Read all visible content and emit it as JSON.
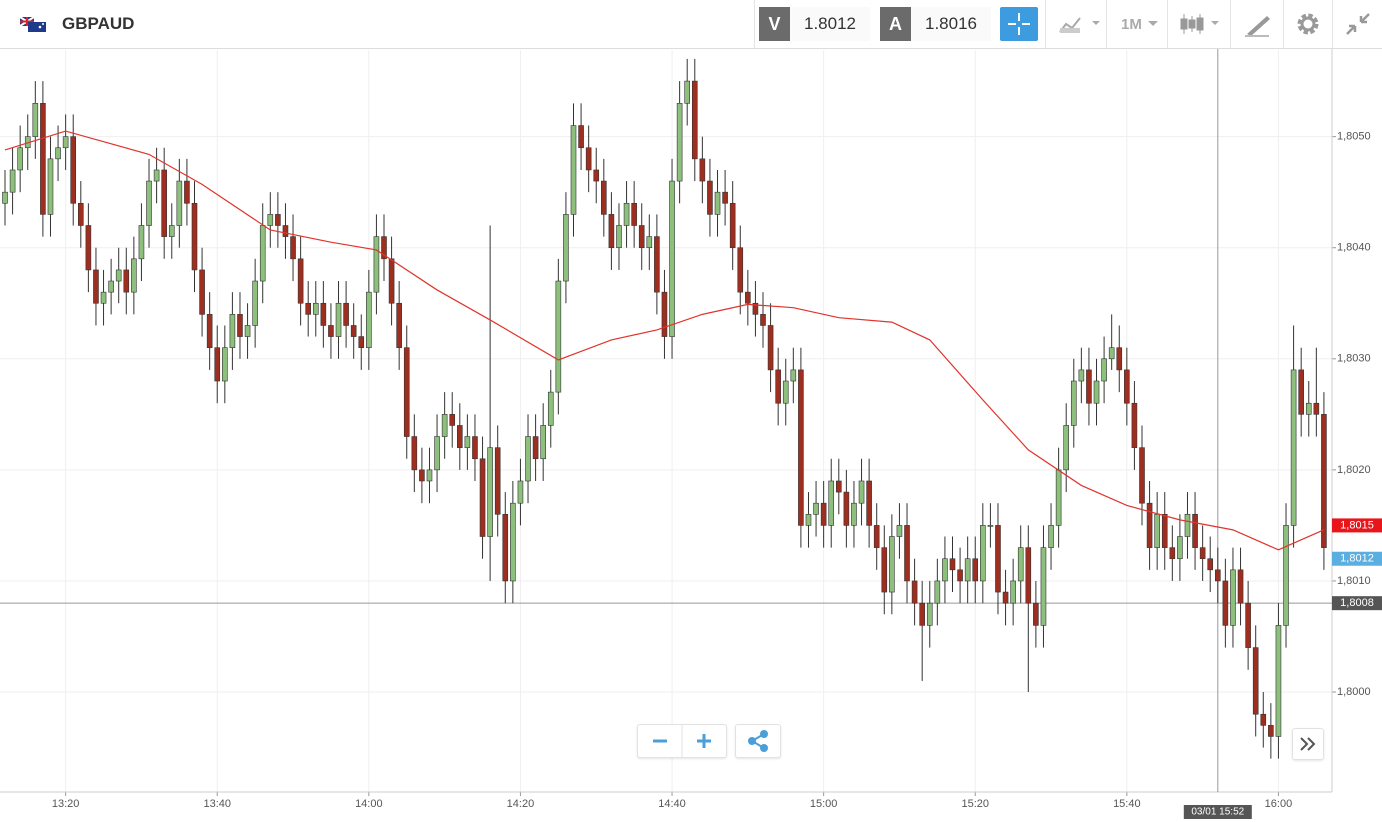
{
  "toolbar": {
    "symbol": "GBPAUD",
    "bid_label": "V",
    "bid": 1.8012,
    "ask_label": "A",
    "ask": 1.8016,
    "timeframe": "1M"
  },
  "chart_data": {
    "type": "candlestick",
    "up_color": "#8dbf7d",
    "down_color": "#9e2f20",
    "open": [
      1.8044,
      1.8045,
      1.8047,
      1.8049,
      1.805,
      1.8053,
      1.8043,
      1.8048,
      1.8049,
      1.805,
      1.8044,
      1.8042,
      1.8038,
      1.8035,
      1.8036,
      1.8037,
      1.8038,
      1.8036,
      1.8039,
      1.8042,
      1.8046,
      1.8047,
      1.8041,
      1.8042,
      1.8046,
      1.8044,
      1.8038,
      1.8034,
      1.8031,
      1.8028,
      1.8031,
      1.8034,
      1.8032,
      1.8033,
      1.8037,
      1.8042,
      1.8043,
      1.8042,
      1.8041,
      1.8039,
      1.8035,
      1.8034,
      1.8035,
      1.8033,
      1.8032,
      1.8035,
      1.8033,
      1.8032,
      1.8031,
      1.8036,
      1.8041,
      1.8039,
      1.8035,
      1.8031,
      1.8023,
      1.802,
      1.8019,
      1.802,
      1.8023,
      1.8025,
      1.8024,
      1.8022,
      1.8023,
      1.8021,
      1.8014,
      1.8022,
      1.8016,
      1.801,
      1.8017,
      1.8019,
      1.8023,
      1.8021,
      1.8024,
      1.8027,
      1.8037,
      1.8043,
      1.8051,
      1.8049,
      1.8047,
      1.8046,
      1.8043,
      1.804,
      1.8042,
      1.8044,
      1.8042,
      1.804,
      1.8041,
      1.8036,
      1.8032,
      1.8046,
      1.8053,
      1.8055,
      1.8048,
      1.8046,
      1.8043,
      1.8045,
      1.8044,
      1.804,
      1.8036,
      1.8035,
      1.8034,
      1.8033,
      1.8029,
      1.8026,
      1.8028,
      1.8029,
      1.8015,
      1.8016,
      1.8017,
      1.8015,
      1.8019,
      1.8018,
      1.8015,
      1.8017,
      1.8019,
      1.8015,
      1.8013,
      1.8009,
      1.8014,
      1.8015,
      1.801,
      1.8008,
      1.8006,
      1.8008,
      1.801,
      1.8012,
      1.8011,
      1.801,
      1.8012,
      1.801,
      1.8015,
      1.8015,
      1.8009,
      1.8008,
      1.801,
      1.8013,
      1.8008,
      1.8006,
      1.8013,
      1.8015,
      1.802,
      1.8024,
      1.8028,
      1.8029,
      1.8026,
      1.8028,
      1.803,
      1.8031,
      1.8029,
      1.8026,
      1.8022,
      1.8017,
      1.8013,
      1.8016,
      1.8013,
      1.8012,
      1.8014,
      1.8016,
      1.8013,
      1.8012,
      1.8011,
      1.801,
      1.8006,
      1.8011,
      1.8008,
      1.8004,
      1.7998,
      1.7997,
      1.7996,
      1.8006,
      1.8015,
      1.8029,
      1.8025,
      1.8026,
      1.8025
    ],
    "high": [
      1.8047,
      1.8049,
      1.8051,
      1.8052,
      1.8055,
      1.8055,
      1.805,
      1.8051,
      1.8052,
      1.8052,
      1.8046,
      1.8044,
      1.804,
      1.8038,
      1.8039,
      1.804,
      1.804,
      1.8041,
      1.8044,
      1.8048,
      1.8049,
      1.8049,
      1.8044,
      1.8048,
      1.8048,
      1.8046,
      1.804,
      1.8036,
      1.8033,
      1.8033,
      1.8036,
      1.8036,
      1.8035,
      1.8039,
      1.8044,
      1.8045,
      1.8045,
      1.8044,
      1.8043,
      1.8041,
      1.8037,
      1.8037,
      1.8037,
      1.8035,
      1.8037,
      1.8037,
      1.8035,
      1.8034,
      1.8038,
      1.8043,
      1.8043,
      1.8041,
      1.8037,
      1.8033,
      1.8025,
      1.8022,
      1.8022,
      1.8025,
      1.8027,
      1.8027,
      1.8026,
      1.8025,
      1.8025,
      1.8023,
      1.8042,
      1.8024,
      1.8018,
      1.8019,
      1.8021,
      1.8025,
      1.8025,
      1.8026,
      1.8029,
      1.8039,
      1.8045,
      1.8053,
      1.8053,
      1.8051,
      1.8049,
      1.8048,
      1.8045,
      1.8044,
      1.8046,
      1.8046,
      1.8044,
      1.8043,
      1.8043,
      1.8038,
      1.8048,
      1.8055,
      1.8057,
      1.8057,
      1.805,
      1.8048,
      1.8047,
      1.8047,
      1.8046,
      1.8042,
      1.8038,
      1.8037,
      1.8036,
      1.8035,
      1.8031,
      1.803,
      1.8031,
      1.8031,
      1.8018,
      1.8019,
      1.8019,
      1.8021,
      1.8021,
      1.802,
      1.8019,
      1.8021,
      1.8021,
      1.8017,
      1.8015,
      1.8016,
      1.8017,
      1.8017,
      1.8012,
      1.801,
      1.801,
      1.8012,
      1.8014,
      1.8014,
      1.8013,
      1.8014,
      1.8014,
      1.8017,
      1.8017,
      1.8017,
      1.8011,
      1.8012,
      1.8015,
      1.8015,
      1.801,
      1.8015,
      1.8017,
      1.8022,
      1.8026,
      1.803,
      1.8031,
      1.8031,
      1.803,
      1.8032,
      1.8034,
      1.8033,
      1.8031,
      1.8028,
      1.8024,
      1.8019,
      1.8018,
      1.8018,
      1.8015,
      1.8016,
      1.8018,
      1.8018,
      1.8015,
      1.8014,
      1.8013,
      1.8012,
      1.8013,
      1.8013,
      1.801,
      1.8006,
      1.8,
      1.7999,
      1.8008,
      1.8017,
      1.8033,
      1.8031,
      1.8028,
      1.8031,
      1.8027
    ],
    "low": [
      1.8042,
      1.8043,
      1.8045,
      1.8047,
      1.8048,
      1.8041,
      1.8041,
      1.8046,
      1.8047,
      1.8042,
      1.804,
      1.8036,
      1.8033,
      1.8033,
      1.8034,
      1.8035,
      1.8034,
      1.8034,
      1.8037,
      1.804,
      1.8044,
      1.8039,
      1.8039,
      1.804,
      1.8042,
      1.8036,
      1.8032,
      1.8029,
      1.8026,
      1.8026,
      1.8029,
      1.803,
      1.803,
      1.8031,
      1.8035,
      1.804,
      1.804,
      1.8039,
      1.8037,
      1.8033,
      1.8032,
      1.8032,
      1.8031,
      1.803,
      1.803,
      1.8031,
      1.803,
      1.8029,
      1.8029,
      1.8034,
      1.8037,
      1.8033,
      1.8029,
      1.8021,
      1.8018,
      1.8017,
      1.8017,
      1.8018,
      1.8021,
      1.8022,
      1.802,
      1.802,
      1.8019,
      1.8012,
      1.801,
      1.8014,
      1.8008,
      1.8008,
      1.8015,
      1.8017,
      1.8019,
      1.8019,
      1.8022,
      1.8025,
      1.8035,
      1.8041,
      1.8047,
      1.8045,
      1.8044,
      1.8041,
      1.8038,
      1.8038,
      1.804,
      1.804,
      1.8038,
      1.8038,
      1.8034,
      1.803,
      1.803,
      1.8044,
      1.8051,
      1.8046,
      1.8044,
      1.8041,
      1.8041,
      1.8042,
      1.8038,
      1.8034,
      1.8033,
      1.8032,
      1.8031,
      1.8027,
      1.8024,
      1.8024,
      1.8026,
      1.8013,
      1.8013,
      1.8014,
      1.8013,
      1.8013,
      1.8016,
      1.8013,
      1.8013,
      1.8015,
      1.8013,
      1.8011,
      1.8007,
      1.8007,
      1.8012,
      1.8008,
      1.8006,
      1.8001,
      1.8004,
      1.8006,
      1.8008,
      1.8009,
      1.8008,
      1.8008,
      1.8008,
      1.8008,
      1.8013,
      1.8007,
      1.8006,
      1.8006,
      1.8008,
      1.8,
      1.8004,
      1.8004,
      1.8011,
      1.8013,
      1.8018,
      1.8022,
      1.8026,
      1.8024,
      1.8024,
      1.8026,
      1.8029,
      1.8027,
      1.8024,
      1.802,
      1.8015,
      1.8011,
      1.8011,
      1.8011,
      1.801,
      1.801,
      1.8012,
      1.8011,
      1.801,
      1.8009,
      1.8008,
      1.8004,
      1.8004,
      1.8006,
      1.8002,
      1.7996,
      1.7995,
      1.7994,
      1.7994,
      1.8004,
      1.8013,
      1.8023,
      1.8023,
      1.8023,
      1.8011
    ],
    "close": [
      1.8045,
      1.8047,
      1.8049,
      1.805,
      1.8053,
      1.8043,
      1.8048,
      1.8049,
      1.805,
      1.8044,
      1.8042,
      1.8038,
      1.8035,
      1.8036,
      1.8037,
      1.8038,
      1.8036,
      1.8039,
      1.8042,
      1.8046,
      1.8047,
      1.8041,
      1.8042,
      1.8046,
      1.8044,
      1.8038,
      1.8034,
      1.8031,
      1.8028,
      1.8031,
      1.8034,
      1.8032,
      1.8033,
      1.8037,
      1.8042,
      1.8043,
      1.8042,
      1.8041,
      1.8039,
      1.8035,
      1.8034,
      1.8035,
      1.8033,
      1.8032,
      1.8035,
      1.8033,
      1.8032,
      1.8031,
      1.8036,
      1.8041,
      1.8039,
      1.8035,
      1.8031,
      1.8023,
      1.802,
      1.8019,
      1.802,
      1.8023,
      1.8025,
      1.8024,
      1.8022,
      1.8023,
      1.8021,
      1.8014,
      1.8022,
      1.8016,
      1.801,
      1.8017,
      1.8019,
      1.8023,
      1.8021,
      1.8024,
      1.8027,
      1.8037,
      1.8043,
      1.8051,
      1.8049,
      1.8047,
      1.8046,
      1.8043,
      1.804,
      1.8042,
      1.8044,
      1.8042,
      1.804,
      1.8041,
      1.8036,
      1.8032,
      1.8046,
      1.8053,
      1.8055,
      1.8048,
      1.8046,
      1.8043,
      1.8045,
      1.8044,
      1.804,
      1.8036,
      1.8035,
      1.8034,
      1.8033,
      1.8029,
      1.8026,
      1.8028,
      1.8029,
      1.8015,
      1.8016,
      1.8017,
      1.8015,
      1.8019,
      1.8018,
      1.8015,
      1.8017,
      1.8019,
      1.8015,
      1.8013,
      1.8009,
      1.8014,
      1.8015,
      1.801,
      1.8008,
      1.8006,
      1.8008,
      1.801,
      1.8012,
      1.8011,
      1.801,
      1.8012,
      1.801,
      1.8015,
      1.8015,
      1.8009,
      1.8008,
      1.801,
      1.8013,
      1.8008,
      1.8006,
      1.8013,
      1.8015,
      1.802,
      1.8024,
      1.8028,
      1.8029,
      1.8026,
      1.8028,
      1.803,
      1.8031,
      1.8029,
      1.8026,
      1.8022,
      1.8017,
      1.8013,
      1.8016,
      1.8013,
      1.8012,
      1.8014,
      1.8016,
      1.8013,
      1.8012,
      1.8011,
      1.801,
      1.8006,
      1.8011,
      1.8008,
      1.8004,
      1.7998,
      1.7997,
      1.7996,
      1.8006,
      1.8015,
      1.8029,
      1.8025,
      1.8026,
      1.8025,
      1.8013
    ],
    "moving_average": {
      "color": "#e0342c",
      "x": [
        0,
        8,
        19,
        26,
        35,
        43,
        49,
        57,
        64,
        73,
        80,
        86,
        92,
        98,
        104,
        110,
        117,
        122,
        129,
        135,
        142,
        148,
        155,
        162,
        168,
        174
      ],
      "values": [
        1.80488,
        1.80505,
        1.80484,
        1.80457,
        1.80416,
        1.80405,
        1.80398,
        1.80362,
        1.80335,
        1.80299,
        1.80317,
        1.80326,
        1.8034,
        1.80349,
        1.80346,
        1.80337,
        1.80333,
        1.80317,
        1.80263,
        1.80218,
        1.80186,
        1.80168,
        1.80155,
        1.80146,
        1.80128,
        1.80146
      ]
    },
    "ylim": [
      1.7991,
      1.80578
    ],
    "yticks": [
      {
        "value": 1.8,
        "label": "1,8000"
      },
      {
        "value": 1.801,
        "label": "1,8010"
      },
      {
        "value": 1.802,
        "label": "1,8020"
      },
      {
        "value": 1.803,
        "label": "1,8030"
      },
      {
        "value": 1.804,
        "label": "1,8040"
      },
      {
        "value": 1.805,
        "label": "1,8050"
      }
    ],
    "xticks": [
      {
        "value": 8,
        "label": "13:20"
      },
      {
        "value": 28,
        "label": "13:40"
      },
      {
        "value": 48,
        "label": "14:00"
      },
      {
        "value": 68,
        "label": "14:20"
      },
      {
        "value": 88,
        "label": "14:40"
      },
      {
        "value": 108,
        "label": "15:00"
      },
      {
        "value": 128,
        "label": "15:20"
      },
      {
        "value": 148,
        "label": "15:40"
      },
      {
        "value": 168,
        "label": "16:00"
      }
    ],
    "grid": true,
    "price_tags": [
      {
        "value": 1.8015,
        "label": "1,8015",
        "color": "#e8151b"
      },
      {
        "value": 1.8012,
        "label": "1,8012",
        "color": "#5aaee0"
      }
    ],
    "crosshair": {
      "x": 160,
      "x_label": "03/01 15:52",
      "y": {
        "value": 1.8008,
        "label": "1,8008"
      },
      "color": "#555555"
    }
  }
}
